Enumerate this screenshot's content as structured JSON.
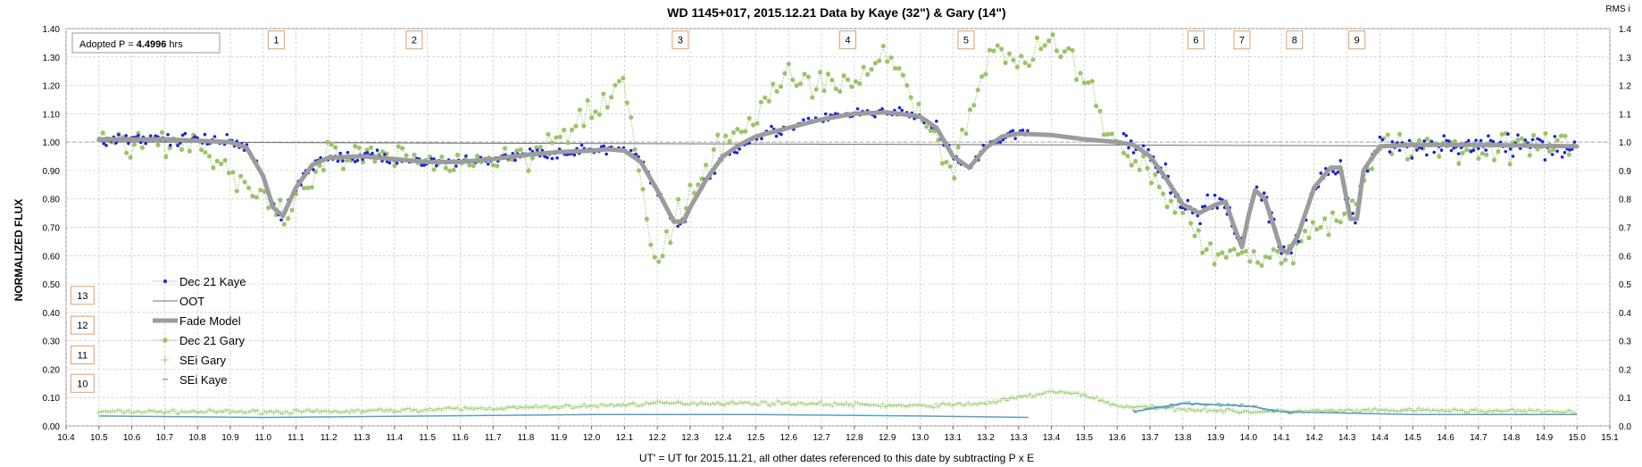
{
  "chart_data": {
    "type": "line",
    "title": "WD 1145+017, 2015.12.21 Data by Kaye (32\") & Gary (14\")",
    "xlabel": "UT' = UT for 2015.11.21, all other dates referenced to this date by subtracting P x E",
    "ylabel": "NORMALIZED FLUX",
    "y2label": "RMS i",
    "xlim": [
      10.4,
      15.1
    ],
    "ylim": [
      0.0,
      1.4
    ],
    "x_tick_labels": [
      "10.4",
      "10.5",
      "10.6",
      "10.7",
      "10.8",
      "10.9",
      "11.0",
      "11.1",
      "11.2",
      "11.3",
      "11.4",
      "11.5",
      "11.6",
      "11.7",
      "11.8",
      "11.9",
      "12.0",
      "12.1",
      "12.2",
      "12.3",
      "12.4",
      "12.5",
      "12.6",
      "12.7",
      "12.8",
      "12.9",
      "13.0",
      "13.1",
      "13.2",
      "13.3",
      "13.4",
      "13.5",
      "13.6",
      "13.7",
      "13.8",
      "13.9",
      "14.0",
      "14.1",
      "14.2",
      "14.3",
      "14.4",
      "14.5",
      "14.6",
      "14.7",
      "14.8",
      "14.9",
      "15.0",
      "15.1"
    ],
    "y_tick_labels": [
      "0.00",
      "0.10",
      "0.20",
      "0.30",
      "0.40",
      "0.50",
      "0.60",
      "0.70",
      "0.80",
      "0.90",
      "1.00",
      "1.10",
      "1.20",
      "1.30",
      "1.40"
    ],
    "y2_tick_labels": [
      "0.0",
      "0.1",
      "0.2",
      "0.3",
      "0.4",
      "0.5",
      "0.6",
      "0.7",
      "0.8",
      "0.9",
      "1.0",
      "1.1",
      "1.2",
      "1.3",
      "1.4"
    ],
    "grid": true,
    "legend_position": "lower-left",
    "annotations": {
      "period": {
        "prefix": "Adopted P = ",
        "value": "4.4996",
        "suffix": " hrs"
      },
      "dip_markers": [
        {
          "label": "1",
          "x": 11.04,
          "y": 1.36
        },
        {
          "label": "2",
          "x": 11.46,
          "y": 1.36
        },
        {
          "label": "3",
          "x": 12.27,
          "y": 1.36
        },
        {
          "label": "4",
          "x": 12.78,
          "y": 1.36
        },
        {
          "label": "5",
          "x": 13.14,
          "y": 1.36
        },
        {
          "label": "6",
          "x": 13.84,
          "y": 1.36
        },
        {
          "label": "7",
          "x": 13.98,
          "y": 1.36
        },
        {
          "label": "8",
          "x": 14.14,
          "y": 1.36
        },
        {
          "label": "9",
          "x": 14.33,
          "y": 1.36
        },
        {
          "label": "13",
          "x": 10.45,
          "y": 0.46
        },
        {
          "label": "12",
          "x": 10.45,
          "y": 0.355
        },
        {
          "label": "11",
          "x": 10.45,
          "y": 0.25
        },
        {
          "label": "10",
          "x": 10.45,
          "y": 0.15
        }
      ]
    },
    "colors": {
      "kaye": "#1a23d6",
      "gary": "#9bc46a",
      "fade": "#9c9c9c",
      "oot": "#707070",
      "sei_gary": "#a5cf7a",
      "sei_kaye": "#5b9fbb",
      "marker_border": "#e0a06a"
    },
    "series": [
      {
        "name": "Dec 21 Kaye",
        "style": "blue dots",
        "x_range": [
          10.5,
          15.0
        ],
        "scatter_level": 0.03,
        "values_xy": [
          [
            10.5,
            1.01
          ],
          [
            10.6,
            1.0
          ],
          [
            10.7,
            1.0
          ],
          [
            10.8,
            1.0
          ],
          [
            10.9,
            0.99
          ],
          [
            11.0,
            0.95
          ],
          [
            11.05,
            0.74
          ],
          [
            11.1,
            0.88
          ],
          [
            11.2,
            0.94
          ],
          [
            11.4,
            0.94
          ],
          [
            11.6,
            0.93
          ],
          [
            11.8,
            0.95
          ],
          [
            12.0,
            0.97
          ],
          [
            12.1,
            0.96
          ],
          [
            12.2,
            0.8
          ],
          [
            12.25,
            0.72
          ],
          [
            12.3,
            0.82
          ],
          [
            12.4,
            0.97
          ],
          [
            12.5,
            1.04
          ],
          [
            12.6,
            1.07
          ],
          [
            12.7,
            1.09
          ],
          [
            12.8,
            1.11
          ],
          [
            12.9,
            1.11
          ],
          [
            13.0,
            1.07
          ],
          [
            13.1,
            0.93
          ],
          [
            13.2,
            1.01
          ],
          [
            13.3,
            1.03
          ],
          [
            13.33,
            1.03
          ]
        ]
      },
      {
        "name": "OOT",
        "style": "thin line",
        "values_xy": [
          [
            10.5,
            1.0
          ],
          [
            15.0,
            0.985
          ]
        ]
      },
      {
        "name": "Fade Model",
        "style": "thick gray line",
        "values_xy": [
          [
            10.5,
            1.01
          ],
          [
            10.6,
            1.01
          ],
          [
            10.7,
            1.01
          ],
          [
            10.8,
            1.005
          ],
          [
            10.9,
            1.0
          ],
          [
            10.95,
            0.98
          ],
          [
            11.0,
            0.88
          ],
          [
            11.03,
            0.77
          ],
          [
            11.06,
            0.74
          ],
          [
            11.1,
            0.84
          ],
          [
            11.15,
            0.92
          ],
          [
            11.2,
            0.945
          ],
          [
            11.3,
            0.95
          ],
          [
            11.4,
            0.94
          ],
          [
            11.5,
            0.93
          ],
          [
            11.6,
            0.93
          ],
          [
            11.7,
            0.94
          ],
          [
            11.8,
            0.955
          ],
          [
            11.9,
            0.965
          ],
          [
            12.0,
            0.97
          ],
          [
            12.05,
            0.975
          ],
          [
            12.1,
            0.97
          ],
          [
            12.15,
            0.93
          ],
          [
            12.2,
            0.83
          ],
          [
            12.25,
            0.72
          ],
          [
            12.28,
            0.72
          ],
          [
            12.3,
            0.77
          ],
          [
            12.35,
            0.87
          ],
          [
            12.4,
            0.95
          ],
          [
            12.45,
            0.99
          ],
          [
            12.5,
            1.02
          ],
          [
            12.6,
            1.05
          ],
          [
            12.7,
            1.08
          ],
          [
            12.8,
            1.1
          ],
          [
            12.9,
            1.105
          ],
          [
            13.0,
            1.09
          ],
          [
            13.05,
            1.05
          ],
          [
            13.1,
            0.95
          ],
          [
            13.15,
            0.91
          ],
          [
            13.2,
            0.98
          ],
          [
            13.25,
            1.02
          ],
          [
            13.3,
            1.03
          ],
          [
            13.4,
            1.025
          ],
          [
            13.5,
            1.01
          ],
          [
            13.6,
            1.0
          ],
          [
            13.65,
            0.99
          ],
          [
            13.7,
            0.95
          ],
          [
            13.75,
            0.87
          ],
          [
            13.8,
            0.78
          ],
          [
            13.85,
            0.75
          ],
          [
            13.9,
            0.78
          ],
          [
            13.93,
            0.79
          ],
          [
            13.96,
            0.69
          ],
          [
            13.98,
            0.63
          ],
          [
            14.0,
            0.74
          ],
          [
            14.02,
            0.83
          ],
          [
            14.05,
            0.8
          ],
          [
            14.1,
            0.62
          ],
          [
            14.12,
            0.61
          ],
          [
            14.15,
            0.67
          ],
          [
            14.2,
            0.84
          ],
          [
            14.25,
            0.91
          ],
          [
            14.28,
            0.91
          ],
          [
            14.31,
            0.73
          ],
          [
            14.33,
            0.73
          ],
          [
            14.35,
            0.9
          ],
          [
            14.4,
            0.985
          ],
          [
            14.5,
            0.99
          ],
          [
            14.7,
            0.99
          ],
          [
            15.0,
            0.985
          ]
        ]
      },
      {
        "name": "Dec 21 Gary",
        "style": "green dots with dotted line",
        "x_range": [
          10.5,
          15.0
        ],
        "scatter_level": 0.08,
        "values_xy": [
          [
            10.5,
            1.02
          ],
          [
            10.6,
            1.0
          ],
          [
            10.8,
            1.0
          ],
          [
            11.06,
            0.72
          ],
          [
            11.2,
            0.95
          ],
          [
            11.5,
            0.93
          ],
          [
            11.8,
            0.95
          ],
          [
            12.1,
            1.2
          ],
          [
            12.2,
            0.53
          ],
          [
            12.25,
            0.72
          ],
          [
            12.4,
            0.98
          ],
          [
            12.6,
            1.23
          ],
          [
            12.8,
            1.2
          ],
          [
            12.9,
            1.32
          ],
          [
            13.1,
            0.9
          ],
          [
            13.2,
            1.29
          ],
          [
            13.45,
            1.33
          ],
          [
            13.6,
            1.0
          ],
          [
            13.8,
            0.75
          ],
          [
            13.9,
            0.58
          ],
          [
            13.98,
            0.63
          ],
          [
            14.1,
            0.6
          ],
          [
            14.3,
            0.75
          ],
          [
            14.4,
            0.99
          ],
          [
            15.0,
            0.98
          ]
        ]
      },
      {
        "name": "SEi Gary",
        "style": "green plus",
        "values_xy": [
          [
            10.5,
            0.05
          ],
          [
            11.2,
            0.05
          ],
          [
            11.6,
            0.06
          ],
          [
            12.0,
            0.07
          ],
          [
            12.2,
            0.08
          ],
          [
            12.6,
            0.08
          ],
          [
            13.0,
            0.07
          ],
          [
            13.2,
            0.08
          ],
          [
            13.4,
            0.12
          ],
          [
            13.5,
            0.11
          ],
          [
            13.6,
            0.07
          ],
          [
            14.0,
            0.05
          ],
          [
            14.5,
            0.055
          ],
          [
            15.0,
            0.05
          ]
        ]
      },
      {
        "name": "SEi Kaye",
        "style": "blue dashes",
        "values_xy": [
          [
            10.5,
            0.035
          ],
          [
            11.0,
            0.03
          ],
          [
            12.0,
            0.04
          ],
          [
            12.5,
            0.04
          ],
          [
            13.0,
            0.035
          ],
          [
            13.33,
            0.03
          ],
          [
            13.65,
            0.05
          ],
          [
            13.8,
            0.08
          ],
          [
            14.0,
            0.07
          ],
          [
            14.1,
            0.05
          ],
          [
            14.5,
            0.04
          ],
          [
            15.0,
            0.04
          ]
        ]
      }
    ]
  }
}
